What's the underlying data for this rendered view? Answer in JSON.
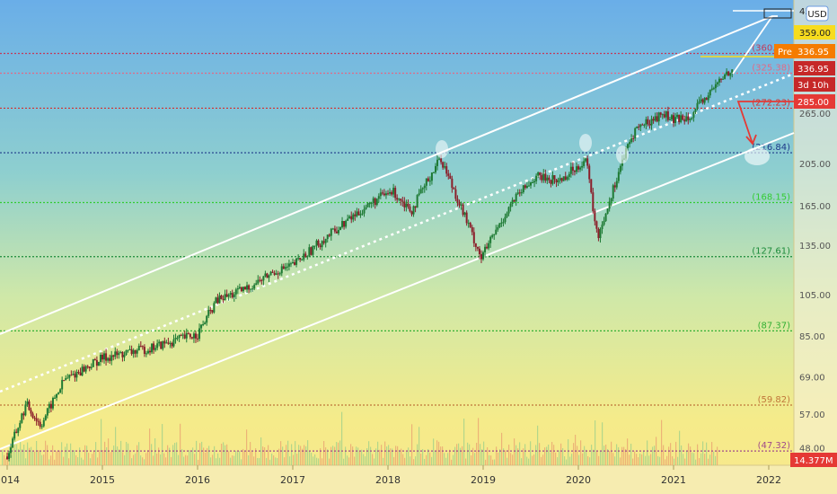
{
  "chart_data": {
    "type": "candlestick",
    "scale": "log",
    "ylim": [
      44,
      460
    ],
    "y_ticks": [
      "359.00",
      "265.00",
      "205.00",
      "165.00",
      "135.00",
      "105.00",
      "85.00",
      "69.00",
      "57.00",
      "48.00"
    ],
    "x_ticks": [
      "2014",
      "2015",
      "2016",
      "2017",
      "2018",
      "2019",
      "2020",
      "2021",
      "2022"
    ],
    "currency": "USD",
    "top_tick_partial": "45",
    "price_tags": [
      {
        "label": "Pre",
        "value": "336.95",
        "color": "#f57c00"
      },
      {
        "label": "",
        "value": "336.95",
        "color": "#c62828"
      },
      {
        "label": "",
        "value": "3d 10h",
        "color": "#c62828"
      },
      {
        "label": "",
        "value": "285.00",
        "color": "#e53935"
      },
      {
        "label": "",
        "value": "14.377M",
        "color": "#e53935"
      }
    ],
    "fib_levels": [
      {
        "text": "(360.00)",
        "value": 360.0,
        "color": "#c23a5a"
      },
      {
        "text": "(325.38)",
        "value": 325.38,
        "color": "#e06a86"
      },
      {
        "text": "(272.23)",
        "value": 272.23,
        "color": "#d32f2f"
      },
      {
        "text": "(216.84)",
        "value": 216.84,
        "color": "#1e3a8a"
      },
      {
        "text": "(168.15)",
        "value": 168.15,
        "color": "#33cc33"
      },
      {
        "text": "(127.61)",
        "value": 127.61,
        "color": "#1b8a3a"
      },
      {
        "text": "(87.37)",
        "value": 87.37,
        "color": "#33b033"
      },
      {
        "text": "(59.82)",
        "value": 59.82,
        "color": "#c0763a"
      },
      {
        "text": "(47.32)",
        "value": 47.32,
        "color": "#a04a8a"
      }
    ],
    "price_path": [
      {
        "date": 2014.0,
        "close": 46
      },
      {
        "date": 2014.2,
        "close": 60
      },
      {
        "date": 2014.35,
        "close": 54
      },
      {
        "date": 2014.6,
        "close": 68
      },
      {
        "date": 2015.0,
        "close": 76
      },
      {
        "date": 2015.5,
        "close": 80
      },
      {
        "date": 2016.0,
        "close": 86
      },
      {
        "date": 2016.2,
        "close": 102
      },
      {
        "date": 2016.5,
        "close": 108
      },
      {
        "date": 2016.8,
        "close": 118
      },
      {
        "date": 2017.0,
        "close": 122
      },
      {
        "date": 2017.3,
        "close": 138
      },
      {
        "date": 2017.6,
        "close": 155
      },
      {
        "date": 2017.9,
        "close": 172
      },
      {
        "date": 2018.05,
        "close": 178
      },
      {
        "date": 2018.25,
        "close": 162
      },
      {
        "date": 2018.55,
        "close": 212
      },
      {
        "date": 2018.75,
        "close": 168
      },
      {
        "date": 2018.98,
        "close": 127
      },
      {
        "date": 2019.3,
        "close": 168
      },
      {
        "date": 2019.55,
        "close": 192
      },
      {
        "date": 2019.8,
        "close": 188
      },
      {
        "date": 2020.08,
        "close": 210
      },
      {
        "date": 2020.2,
        "close": 140
      },
      {
        "date": 2020.45,
        "close": 205
      },
      {
        "date": 2020.6,
        "close": 245
      },
      {
        "date": 2020.9,
        "close": 265
      },
      {
        "date": 2021.0,
        "close": 255
      },
      {
        "date": 2021.2,
        "close": 265
      },
      {
        "date": 2021.5,
        "close": 315
      },
      {
        "date": 2021.62,
        "close": 336.95
      }
    ]
  }
}
